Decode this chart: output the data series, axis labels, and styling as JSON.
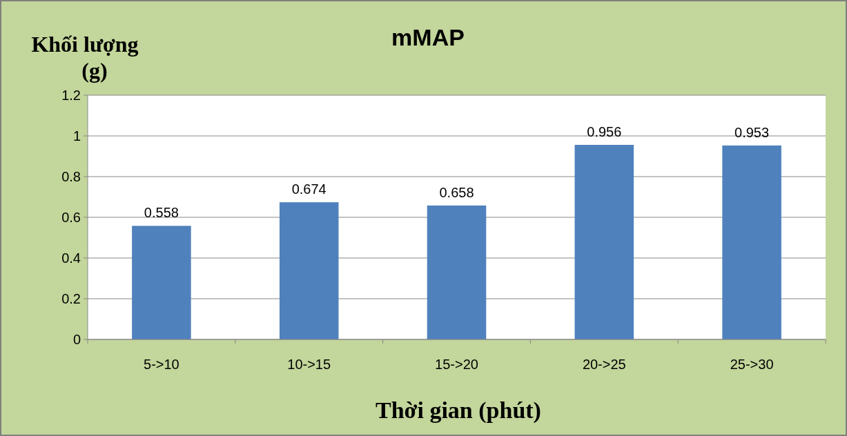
{
  "chart_data": {
    "type": "bar",
    "title": "mMAP",
    "xlabel": "Thời gian (phút)",
    "ylabel": "Khối lượng (g)",
    "categories": [
      "5->10",
      "10->15",
      "15->20",
      "20->25",
      "25->30"
    ],
    "values": [
      0.558,
      0.674,
      0.658,
      0.956,
      0.953
    ],
    "color": "#4f81bd",
    "ylim": [
      0,
      1.2
    ],
    "yticks": [
      0,
      0.2,
      0.4,
      0.6,
      0.8,
      1,
      1.2
    ],
    "grid": "y",
    "data_labels": true
  }
}
